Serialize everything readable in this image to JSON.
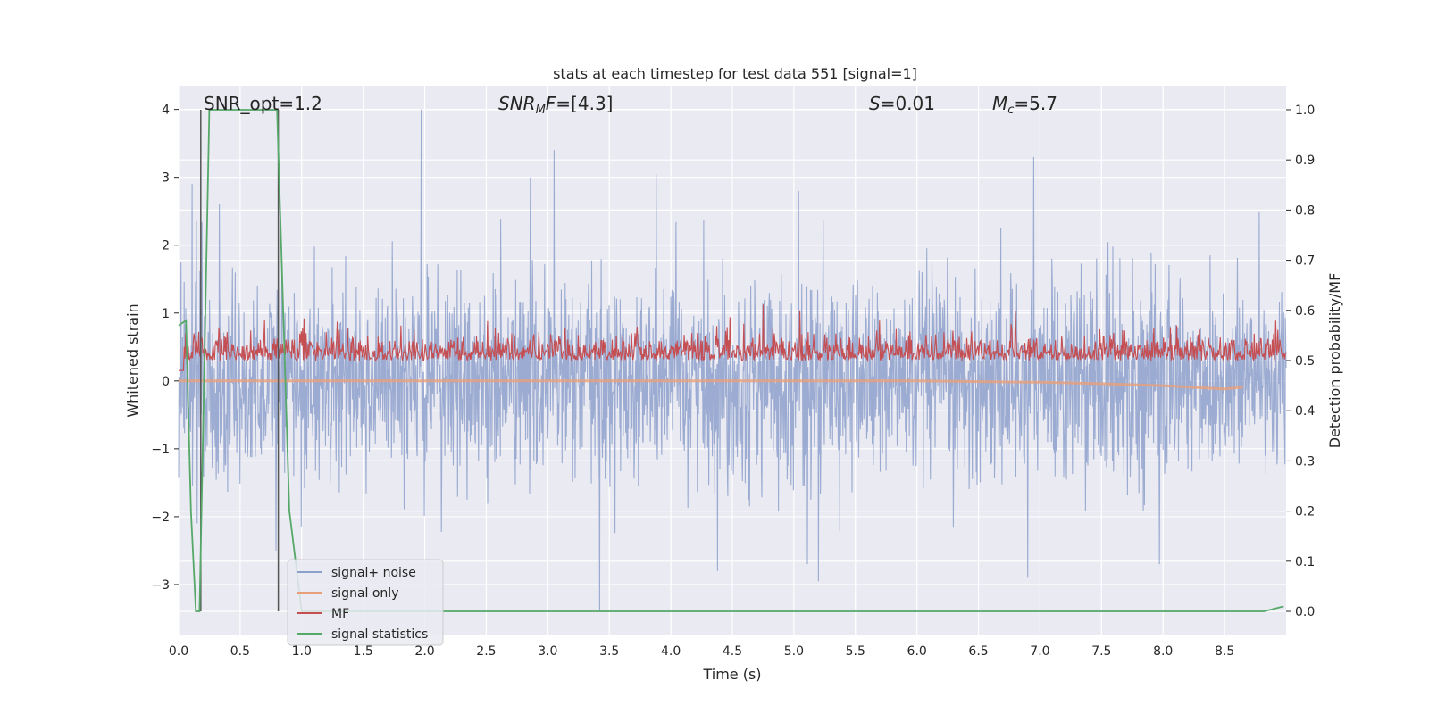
{
  "chart_data": {
    "type": "line",
    "title": "stats at each timestep for test data 551 [signal=1]",
    "xlabel": "Time (s)",
    "ylabel": "Whitened strain",
    "y2label": "Detection probability/MF",
    "xlim": [
      0.0,
      9.0
    ],
    "ylim": [
      -3.75,
      4.35
    ],
    "y2lim": [
      -0.048,
      1.048
    ],
    "xticks": [
      "0.0",
      "0.5",
      "1.0",
      "1.5",
      "2.0",
      "2.5",
      "3.0",
      "3.5",
      "4.0",
      "4.5",
      "5.0",
      "5.5",
      "6.0",
      "6.5",
      "7.0",
      "7.5",
      "8.0",
      "8.5"
    ],
    "yticks": [
      "-3",
      "-2",
      "-1",
      "0",
      "1",
      "2",
      "3",
      "4"
    ],
    "y2ticks": [
      "0.0",
      "0.1",
      "0.2",
      "0.3",
      "0.4",
      "0.5",
      "0.6",
      "0.7",
      "0.8",
      "0.9",
      "1.0"
    ],
    "grid": true,
    "legend_placement": "lower-left",
    "annotations": {
      "snr_opt": "SNR_opt=1.2",
      "snr_mf_base": "SNR",
      "snr_mf_sub": "M",
      "snr_mf_rest": "F=[4.3]",
      "s_sym": "S",
      "s_val": "=0.01",
      "mc_sym": "M",
      "mc_sub": "c",
      "mc_val": "=5.7"
    },
    "series": [
      {
        "name": "signal+ noise",
        "color": "#8da0cb",
        "style": "dense noise, approx std 0.7",
        "peaks": [
          [
            0.11,
            2.9
          ],
          [
            0.33,
            2.6
          ],
          [
            1.97,
            4.0
          ],
          [
            2.86,
            3.0
          ],
          [
            3.05,
            3.4
          ],
          [
            3.88,
            3.05
          ],
          [
            5.04,
            2.8
          ],
          [
            6.95,
            3.3
          ],
          [
            8.78,
            2.5
          ]
        ],
        "troughs": [
          [
            0.15,
            -2.1
          ],
          [
            0.79,
            -2.5
          ],
          [
            3.42,
            -3.4
          ],
          [
            4.38,
            -2.8
          ],
          [
            5.11,
            -2.7
          ],
          [
            5.2,
            -2.95
          ],
          [
            6.9,
            -2.9
          ],
          [
            7.97,
            -2.7
          ]
        ]
      },
      {
        "name": "signal only",
        "color": "#e8a07a",
        "x": [
          0.0,
          1.0,
          2.0,
          3.0,
          4.0,
          5.0,
          6.0,
          7.0,
          7.5,
          8.0,
          8.3,
          8.5,
          8.65
        ],
        "y": [
          0.0,
          0.0,
          0.0,
          0.0,
          0.0,
          0.0,
          0.0,
          -0.02,
          -0.04,
          -0.07,
          -0.1,
          -0.12,
          -0.09
        ]
      },
      {
        "name": "MF",
        "color": "#c44e52",
        "style": "noise on right axis around 0.5",
        "peaks": [
          [
            0.7,
            0.58
          ],
          [
            5.05,
            0.6
          ],
          [
            6.8,
            0.6
          ]
        ]
      },
      {
        "name": "signal statistics",
        "color": "#55a868",
        "axis": "right",
        "x": [
          0.0,
          0.06,
          0.1,
          0.14,
          0.17,
          0.25,
          0.8,
          0.9,
          1.0,
          3.0,
          5.0,
          7.0,
          8.82,
          8.9,
          8.98
        ],
        "y": [
          0.57,
          0.58,
          0.2,
          0.0,
          0.0,
          1.0,
          1.0,
          0.2,
          0.0,
          0.0,
          0.0,
          0.0,
          0.0,
          0.005,
          0.01
        ]
      }
    ],
    "vlines": [
      0.18,
      0.81
    ]
  }
}
